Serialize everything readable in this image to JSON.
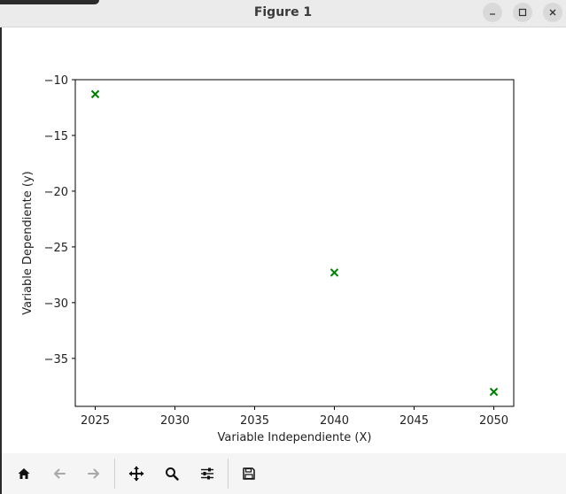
{
  "window": {
    "title": "Figure 1",
    "controls": [
      "minimize",
      "maximize",
      "close"
    ]
  },
  "toolbar": {
    "buttons": [
      {
        "name": "home-button",
        "icon": "home-icon"
      },
      {
        "name": "back-button",
        "icon": "arrow-left-icon",
        "enabled": false
      },
      {
        "name": "forward-button",
        "icon": "arrow-right-icon",
        "enabled": false
      },
      {
        "name": "pan-button",
        "icon": "move-icon"
      },
      {
        "name": "zoom-button",
        "icon": "magnifier-icon"
      },
      {
        "name": "configure-subplots-button",
        "icon": "sliders-icon"
      },
      {
        "name": "save-button",
        "icon": "floppy-disk-icon"
      }
    ]
  },
  "chart_data": {
    "type": "scatter",
    "x": [
      2025,
      2040,
      2050
    ],
    "y": [
      -11.3,
      -27.3,
      -38.0
    ],
    "marker": "x",
    "color": "#008000",
    "xlabel": "Variable Independiente (X)",
    "ylabel": "Variable Dependiente (y)",
    "xlim": [
      2023.75,
      2051.25
    ],
    "ylim": [
      -39.3,
      -10.0
    ],
    "xticks": [
      2025,
      2030,
      2035,
      2040,
      2045,
      2050
    ],
    "yticks": [
      -10,
      -15,
      -20,
      -25,
      -30,
      -35
    ],
    "ytick_labels": [
      "−10",
      "−15",
      "−20",
      "−25",
      "−30",
      "−35"
    ],
    "grid": false
  }
}
